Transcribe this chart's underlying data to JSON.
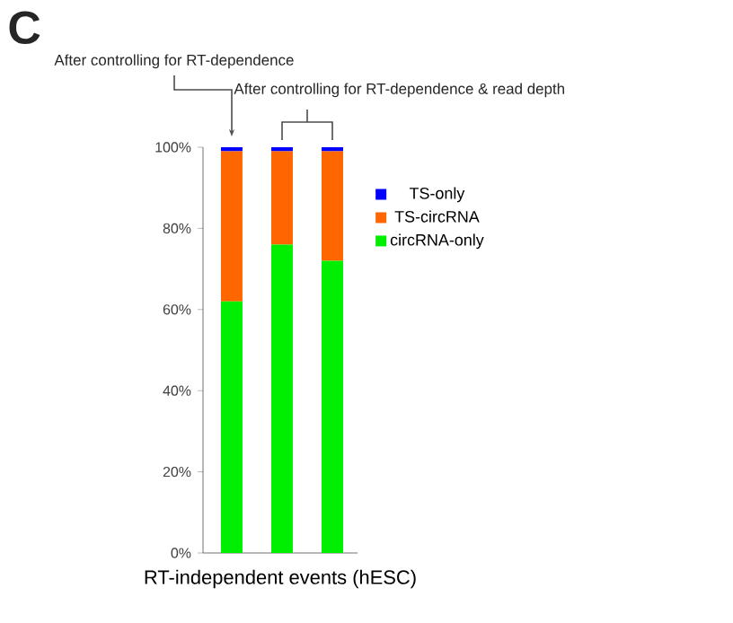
{
  "chart_data": {
    "type": "bar",
    "stacked": true,
    "categories": [
      null,
      null,
      null
    ],
    "series": [
      {
        "name": "circRNA-only",
        "color": "#00ee00",
        "values": [
          62,
          76,
          72
        ]
      },
      {
        "name": "TS-circRNA",
        "color": "#ff6600",
        "values": [
          37,
          23,
          27
        ]
      },
      {
        "name": "TS-only",
        "color": "#0000ff",
        "values": [
          1,
          1,
          1
        ]
      }
    ],
    "xlabel": "RT-independent  events (hESC)",
    "ylim": [
      0,
      100
    ],
    "yticks": [
      {
        "value": 0,
        "label": "0%"
      },
      {
        "value": 20,
        "label": "20%"
      },
      {
        "value": 40,
        "label": "40%"
      },
      {
        "value": 60,
        "label": "60%"
      },
      {
        "value": 80,
        "label": "80%"
      },
      {
        "value": 100,
        "label": "100%"
      }
    ],
    "legend": "right",
    "annotations": [
      "C",
      "After controlling for RT-dependence",
      "After controlling for RT-dependence & read depth"
    ]
  }
}
